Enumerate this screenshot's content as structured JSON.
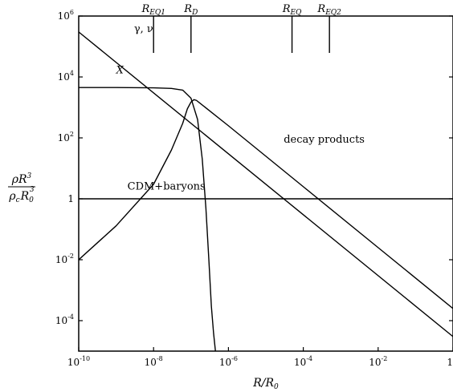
{
  "chart_data": {
    "type": "line",
    "title": "",
    "xlabel": "R/R_0",
    "ylabel": "ρR^3 / (ρ_c R_0^3)",
    "x_scale": "log",
    "y_scale": "log",
    "xlim": [
      1e-10,
      1
    ],
    "ylim": [
      1e-05,
      1000000.0
    ],
    "grid": false,
    "x_ticks": [
      {
        "value": 1e-10,
        "base": "10",
        "exp": "-10"
      },
      {
        "value": 1e-08,
        "base": "10",
        "exp": "-8"
      },
      {
        "value": 1e-06,
        "base": "10",
        "exp": "-6"
      },
      {
        "value": 0.0001,
        "base": "10",
        "exp": "-4"
      },
      {
        "value": 0.01,
        "base": "10",
        "exp": "-2"
      },
      {
        "value": 1,
        "base": "1",
        "exp": ""
      }
    ],
    "y_ticks": [
      {
        "value": 1000000.0,
        "base": "10",
        "exp": "6"
      },
      {
        "value": 10000.0,
        "base": "10",
        "exp": "4"
      },
      {
        "value": 100.0,
        "base": "10",
        "exp": "2"
      },
      {
        "value": 1,
        "base": "1",
        "exp": ""
      },
      {
        "value": 0.01,
        "base": "10",
        "exp": "-2"
      },
      {
        "value": 0.0001,
        "base": "10",
        "exp": "-4"
      }
    ],
    "markers": [
      {
        "name": "R",
        "sub": "EQ1",
        "x": 1e-08
      },
      {
        "name": "R",
        "sub": "D",
        "x": 1e-07
      },
      {
        "name": "R",
        "sub": "EQ",
        "x": 5e-05
      },
      {
        "name": "R",
        "sub": "EQ2",
        "x": 0.0005
      }
    ],
    "series": [
      {
        "name": "γ, ν",
        "x": [
          1e-10,
          1
        ],
        "y": [
          300000.0,
          3e-05
        ]
      },
      {
        "name": "X",
        "x": [
          1e-10,
          1e-09,
          1e-08,
          3e-08,
          6e-08,
          1e-07,
          1.5e-07,
          2e-07,
          2.5e-07,
          3e-07,
          3.5e-07,
          4e-07,
          4.5e-07,
          5e-07
        ],
        "y": [
          4500,
          4500,
          4400,
          4200,
          3700,
          2000,
          400,
          20,
          0.5,
          0.01,
          0.0003,
          4e-05,
          1e-05,
          5e-06
        ]
      },
      {
        "name": "decay products",
        "x": [
          1e-10,
          1e-09,
          1e-08,
          3e-08,
          6e-08,
          8e-08,
          1e-07,
          1.2e-07,
          1.4e-07,
          1e-06,
          0.0001,
          0.01,
          1
        ],
        "y": [
          0.01,
          0.13,
          3,
          40,
          300,
          900,
          1500,
          1800,
          1700,
          250,
          2.5,
          0.025,
          0.00025
        ]
      },
      {
        "name": "CDM+baryons",
        "x": [
          1e-10,
          1
        ],
        "y": [
          1,
          1
        ]
      }
    ],
    "annotations": [
      {
        "text": "γ, ν",
        "x": 3e-09,
        "y": 300000.0
      },
      {
        "text": "X",
        "x": 1e-09,
        "y": 13000.0
      },
      {
        "text": "decay products",
        "x": 3e-05,
        "y": 70
      },
      {
        "text": "CDM+baryons",
        "x": 2e-09,
        "y": 2
      }
    ]
  }
}
